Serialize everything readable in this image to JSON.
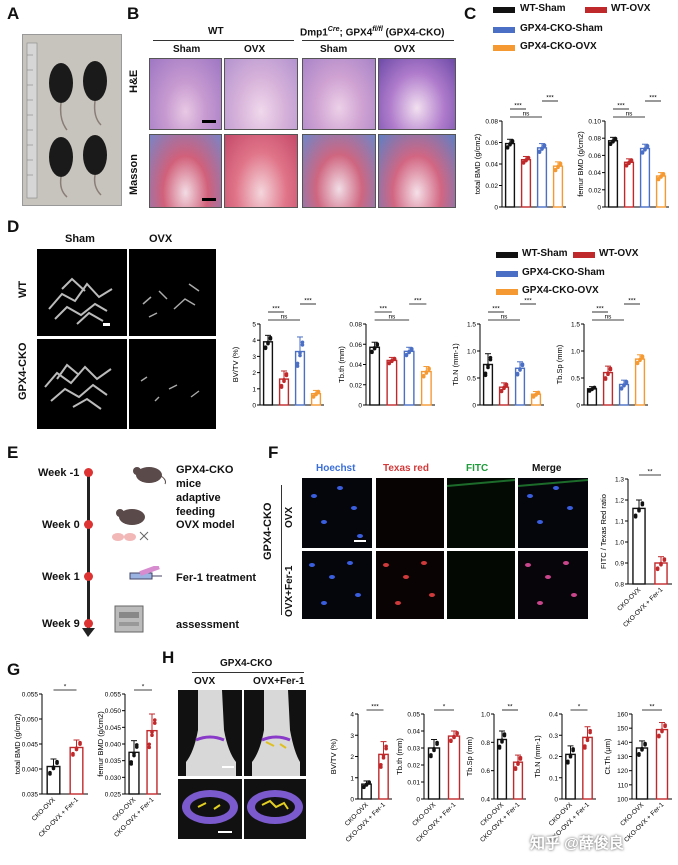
{
  "panels": {
    "A": "A",
    "B": "B",
    "C": "C",
    "D": "D",
    "E": "E",
    "F": "F",
    "G": "G",
    "H": "H"
  },
  "colors": {
    "wt_sham": "#111111",
    "wt_ovx": "#c0292b",
    "cko_sham": "#4a6fc4",
    "cko_ovx": "#f59a33"
  },
  "legend": {
    "wt_sham": "WT-Sham",
    "wt_ovx": "WT-OVX",
    "cko_sham": "GPX4-CKO-Sham",
    "cko_ovx": "GPX4-CKO-OVX"
  },
  "B": {
    "wt": "WT",
    "cko_pre": "Dmp1",
    "cko_sup": "Cre",
    "cko_mid": "; GPX4",
    "cko_sup2": "fl/fl",
    "cko_post": " (GPX4-CKO)",
    "sham": "Sham",
    "ovx": "OVX",
    "he": "H&E",
    "masson": "Masson"
  },
  "D": {
    "sham": "Sham",
    "ovx": "OVX",
    "wt": "WT",
    "cko": "GPX4-CKO"
  },
  "E": {
    "steps": [
      {
        "week": "Week -1",
        "text": "GPX4-CKO"
      },
      {
        "week": "",
        "text": "mice"
      },
      {
        "week": "",
        "text": "adaptive"
      },
      {
        "week": "",
        "text": "feeding"
      },
      {
        "week": "Week 0",
        "text": "OVX model"
      },
      {
        "week": "Week 1",
        "text": "Fer-1 treatment"
      },
      {
        "week": "Week 9",
        "text": "assessment"
      }
    ]
  },
  "F": {
    "hoechst": "Hoechst",
    "texas": "Texas red",
    "fitc": "FITC",
    "merge": "Merge",
    "cko": "GPX4-CKO",
    "ovx": "OVX",
    "ovxfer": "OVX+Fer-1"
  },
  "H": {
    "title": "GPX4-CKO",
    "ovx": "OVX",
    "ovxfer": "OVX+Fer-1"
  },
  "watermark": "知乎 @薛俊良",
  "chart_data": [
    {
      "id": "C1",
      "type": "bar",
      "ylabel": "total BMD (g/cm2)",
      "ylim": [
        0,
        0.08
      ],
      "ticks": [
        "0",
        "0.02",
        "0.04",
        "0.06",
        "0.08"
      ],
      "categories": [
        "WT-Sham",
        "WT-OVX",
        "GPX4-CKO-Sham",
        "GPX4-CKO-OVX"
      ],
      "values": [
        0.059,
        0.044,
        0.055,
        0.038
      ],
      "errors": [
        0.004,
        0.003,
        0.004,
        0.004
      ],
      "sig": [
        {
          "a": 0,
          "b": 2,
          "label": "ns"
        },
        {
          "a": 0,
          "b": 1,
          "label": "***"
        },
        {
          "a": 2,
          "b": 3,
          "label": "***"
        },
        {
          "a": 1,
          "b": 3,
          "label": "**"
        }
      ]
    },
    {
      "id": "C2",
      "type": "bar",
      "ylabel": "femur BMD (g/cm2)",
      "ylim": [
        0,
        0.1
      ],
      "ticks": [
        "0",
        "0.02",
        "0.04",
        "0.06",
        "0.08",
        "0.10"
      ],
      "categories": [
        "WT-Sham",
        "WT-OVX",
        "GPX4-CKO-Sham",
        "GPX4-CKO-OVX"
      ],
      "values": [
        0.077,
        0.052,
        0.068,
        0.036
      ],
      "errors": [
        0.004,
        0.004,
        0.005,
        0.004
      ],
      "sig": [
        {
          "a": 0,
          "b": 2,
          "label": "ns"
        },
        {
          "a": 0,
          "b": 1,
          "label": "***"
        },
        {
          "a": 2,
          "b": 3,
          "label": "***"
        },
        {
          "a": 1,
          "b": 3,
          "label": "***"
        }
      ]
    },
    {
      "id": "D1",
      "type": "bar",
      "ylabel": "BV/TV (%)",
      "ylim": [
        0,
        5
      ],
      "ticks": [
        "0",
        "1",
        "2",
        "3",
        "4",
        "5"
      ],
      "categories": [
        "WT-Sham",
        "WT-OVX",
        "GPX4-CKO-Sham",
        "GPX4-CKO-OVX"
      ],
      "values": [
        3.9,
        1.6,
        3.3,
        0.7
      ],
      "errors": [
        0.4,
        0.5,
        0.9,
        0.2
      ],
      "sig": [
        {
          "a": 0,
          "b": 2,
          "label": "ns"
        },
        {
          "a": 0,
          "b": 1,
          "label": "***"
        },
        {
          "a": 2,
          "b": 3,
          "label": "***"
        },
        {
          "a": 1,
          "b": 3,
          "label": "*"
        }
      ]
    },
    {
      "id": "D2",
      "type": "bar",
      "ylabel": "Tb.th (mm)",
      "ylim": [
        0,
        0.08
      ],
      "ticks": [
        "0",
        "0.02",
        "0.04",
        "0.06",
        "0.08"
      ],
      "categories": [
        "WT-Sham",
        "WT-OVX",
        "GPX4-CKO-Sham",
        "GPX4-CKO-OVX"
      ],
      "values": [
        0.057,
        0.044,
        0.053,
        0.033
      ],
      "errors": [
        0.005,
        0.003,
        0.004,
        0.005
      ],
      "sig": [
        {
          "a": 0,
          "b": 2,
          "label": "ns"
        },
        {
          "a": 0,
          "b": 1,
          "label": "***"
        },
        {
          "a": 2,
          "b": 3,
          "label": "***"
        },
        {
          "a": 1,
          "b": 3,
          "label": "**"
        }
      ]
    },
    {
      "id": "D3",
      "type": "bar",
      "ylabel": "Tb.N (mm-1)",
      "ylim": [
        0,
        1.5
      ],
      "ticks": [
        "0",
        "0.5",
        "1.0",
        "1.5"
      ],
      "categories": [
        "WT-Sham",
        "WT-OVX",
        "GPX4-CKO-Sham",
        "GPX4-CKO-OVX"
      ],
      "values": [
        0.75,
        0.33,
        0.68,
        0.2
      ],
      "errors": [
        0.2,
        0.08,
        0.12,
        0.05
      ],
      "sig": [
        {
          "a": 0,
          "b": 2,
          "label": "ns"
        },
        {
          "a": 0,
          "b": 1,
          "label": "***"
        },
        {
          "a": 2,
          "b": 3,
          "label": "***"
        },
        {
          "a": 1,
          "b": 3,
          "label": "ns"
        }
      ]
    },
    {
      "id": "D4",
      "type": "bar",
      "ylabel": "Tb.Sp (mm)",
      "ylim": [
        0,
        1.5
      ],
      "ticks": [
        "0",
        "0.5",
        "1.0",
        "1.5"
      ],
      "categories": [
        "WT-Sham",
        "WT-OVX",
        "GPX4-CKO-Sham",
        "GPX4-CKO-OVX"
      ],
      "values": [
        0.3,
        0.6,
        0.38,
        0.85
      ],
      "errors": [
        0.04,
        0.12,
        0.08,
        0.08
      ],
      "sig": [
        {
          "a": 0,
          "b": 2,
          "label": "ns"
        },
        {
          "a": 0,
          "b": 1,
          "label": "***"
        },
        {
          "a": 2,
          "b": 3,
          "label": "***"
        },
        {
          "a": 1,
          "b": 3,
          "label": "***"
        }
      ]
    },
    {
      "id": "F1",
      "type": "bar",
      "ylabel": "FITC / Texas Red ratio",
      "ylim": [
        0.8,
        1.3
      ],
      "ticks": [
        "0.8",
        "0.9",
        "1.0",
        "1.1",
        "1.2",
        "1.3"
      ],
      "categories": [
        "CKO-OVX",
        "CKO-OVX + Fer-1"
      ],
      "values": [
        1.16,
        0.9
      ],
      "errors": [
        0.04,
        0.03
      ],
      "sig": [
        {
          "a": 0,
          "b": 1,
          "label": "**"
        }
      ]
    },
    {
      "id": "G1",
      "type": "bar",
      "ylabel": "total BMD (g/cm2)",
      "ylim": [
        0.035,
        0.055
      ],
      "ticks": [
        "0.035",
        "0.040",
        "0.045",
        "0.050",
        "0.055"
      ],
      "categories": [
        "CKO-OVX",
        "CKO-OVX + Fer-1"
      ],
      "values": [
        0.0405,
        0.0443
      ],
      "errors": [
        0.0015,
        0.0015
      ],
      "sig": [
        {
          "a": 0,
          "b": 1,
          "label": "*"
        }
      ]
    },
    {
      "id": "G2",
      "type": "bar",
      "ylabel": "femur BMD (g/cm2)",
      "ylim": [
        0.025,
        0.055
      ],
      "ticks": [
        "0.025",
        "0.030",
        "0.035",
        "0.040",
        "0.045",
        "0.050",
        "0.055"
      ],
      "categories": [
        "CKO-OVX",
        "CKO-OVX + Fer-1"
      ],
      "values": [
        0.0375,
        0.044
      ],
      "errors": [
        0.0035,
        0.005
      ],
      "sig": [
        {
          "a": 0,
          "b": 1,
          "label": "*"
        }
      ]
    },
    {
      "id": "H1",
      "type": "bar",
      "ylabel": "BV/TV (%)",
      "ylim": [
        0,
        4
      ],
      "ticks": [
        "0",
        "1",
        "2",
        "3",
        "4"
      ],
      "categories": [
        "CKO-OVX",
        "CKO-OVX + Fer-1"
      ],
      "values": [
        0.7,
        2.1
      ],
      "errors": [
        0.15,
        0.6
      ],
      "sig": [
        {
          "a": 0,
          "b": 1,
          "label": "***"
        }
      ]
    },
    {
      "id": "H2",
      "type": "bar",
      "ylabel": "Tb.th (mm)",
      "ylim": [
        0,
        0.05
      ],
      "ticks": [
        "0",
        "0.01",
        "0.02",
        "0.03",
        "0.04",
        "0.05"
      ],
      "categories": [
        "CKO-OVX",
        "CKO-OVX + Fer-1"
      ],
      "values": [
        0.03,
        0.037
      ],
      "errors": [
        0.005,
        0.003
      ],
      "sig": [
        {
          "a": 0,
          "b": 1,
          "label": "*"
        }
      ]
    },
    {
      "id": "H3",
      "type": "bar",
      "ylabel": "Tb.Sp (mm)",
      "ylim": [
        0.4,
        1.0
      ],
      "ticks": [
        "0.4",
        "0.6",
        "0.8",
        "1.0"
      ],
      "categories": [
        "CKO-OVX",
        "CKO-OVX + Fer-1"
      ],
      "values": [
        0.82,
        0.66
      ],
      "errors": [
        0.06,
        0.05
      ],
      "sig": [
        {
          "a": 0,
          "b": 1,
          "label": "**"
        }
      ]
    },
    {
      "id": "H4",
      "type": "bar",
      "ylabel": "Tb.N (mm-1)",
      "ylim": [
        0,
        0.4
      ],
      "ticks": [
        "0",
        "0.1",
        "0.2",
        "0.3",
        "0.4"
      ],
      "categories": [
        "CKO-OVX",
        "CKO-OVX + Fer-1"
      ],
      "values": [
        0.21,
        0.29
      ],
      "errors": [
        0.04,
        0.05
      ],
      "sig": [
        {
          "a": 0,
          "b": 1,
          "label": "*"
        }
      ]
    },
    {
      "id": "H5",
      "type": "bar",
      "ylabel": "Ct.Th (μm)",
      "ylim": [
        100,
        160
      ],
      "ticks": [
        "100",
        "110",
        "120",
        "130",
        "140",
        "150",
        "160"
      ],
      "categories": [
        "CKO-OVX",
        "CKO-OVX + Fer-1"
      ],
      "values": [
        136,
        149
      ],
      "errors": [
        5,
        5
      ],
      "sig": [
        {
          "a": 0,
          "b": 1,
          "label": "**"
        }
      ]
    }
  ]
}
